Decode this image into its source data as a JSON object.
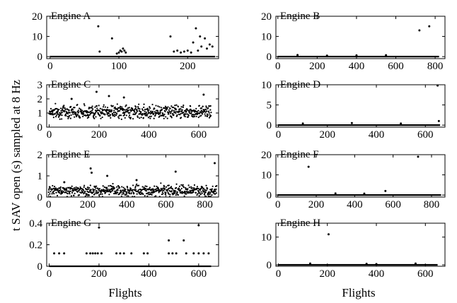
{
  "figure": {
    "ylabel": "t SAV open (s) sampled at 8 Hz",
    "xlabel_left": "Flights",
    "xlabel_right": "Flights"
  },
  "chart_data": [
    {
      "type": "scatter",
      "title": "Engine A",
      "xlim": [
        -5,
        245
      ],
      "ylim": [
        -1,
        20
      ],
      "xticks": [
        0,
        100,
        200
      ],
      "yticks": [
        0,
        10,
        20
      ],
      "baseline": {
        "value": 0,
        "x_from": 0,
        "x_to": 240
      },
      "points": [
        [
          70,
          15
        ],
        [
          72,
          2.5
        ],
        [
          90,
          9
        ],
        [
          97,
          1.5
        ],
        [
          100,
          2
        ],
        [
          102,
          3
        ],
        [
          104,
          2.5
        ],
        [
          106,
          4
        ],
        [
          108,
          3
        ],
        [
          110,
          2
        ],
        [
          175,
          10
        ],
        [
          180,
          2.5
        ],
        [
          185,
          3
        ],
        [
          190,
          2
        ],
        [
          195,
          2.5
        ],
        [
          200,
          3
        ],
        [
          205,
          2
        ],
        [
          208,
          7
        ],
        [
          212,
          14
        ],
        [
          215,
          3
        ],
        [
          218,
          10
        ],
        [
          220,
          5
        ],
        [
          225,
          9
        ],
        [
          228,
          4
        ],
        [
          232,
          6
        ],
        [
          236,
          5
        ]
      ]
    },
    {
      "type": "scatter",
      "title": "Engine B",
      "xlim": [
        -10,
        850
      ],
      "ylim": [
        -1,
        20
      ],
      "xticks": [
        0,
        200,
        400,
        600,
        800
      ],
      "yticks": [
        0,
        10,
        20
      ],
      "baseline": {
        "value": 0,
        "x_from": 0,
        "x_to": 820
      },
      "points": [
        [
          100,
          0.8
        ],
        [
          250,
          0.5
        ],
        [
          400,
          0.6
        ],
        [
          550,
          0.7
        ],
        [
          720,
          13
        ],
        [
          770,
          15
        ]
      ]
    },
    {
      "type": "scatter",
      "title": "Engine C",
      "xlim": [
        -10,
        680
      ],
      "ylim": [
        0,
        3
      ],
      "xticks": [
        0,
        200,
        400,
        600
      ],
      "yticks": [
        0,
        1,
        2,
        3
      ],
      "band": {
        "x_from": 0,
        "x_to": 650,
        "center": 1.1,
        "spread": 0.45,
        "count": 650
      },
      "points": [
        [
          190,
          2.5
        ],
        [
          240,
          2.2
        ],
        [
          620,
          2.3
        ],
        [
          300,
          2.1
        ],
        [
          90,
          2.0
        ]
      ]
    },
    {
      "type": "scatter",
      "title": "Engine D",
      "xlim": [
        -10,
        680
      ],
      "ylim": [
        -0.5,
        10
      ],
      "xticks": [
        0,
        200,
        400,
        600
      ],
      "yticks": [
        0,
        5,
        10
      ],
      "baseline": {
        "value": 0,
        "x_from": 0,
        "x_to": 660
      },
      "points": [
        [
          650,
          9.8
        ],
        [
          655,
          1.0
        ],
        [
          100,
          0.4
        ],
        [
          300,
          0.5
        ],
        [
          500,
          0.4
        ]
      ]
    },
    {
      "type": "scatter",
      "title": "Engine E",
      "xlim": [
        -10,
        870
      ],
      "ylim": [
        0,
        2
      ],
      "xticks": [
        0,
        200,
        400,
        600,
        800
      ],
      "yticks": [
        0,
        1,
        2
      ],
      "band": {
        "x_from": 0,
        "x_to": 860,
        "center": 0.3,
        "spread": 0.25,
        "count": 600
      },
      "points": [
        [
          215,
          1.35
        ],
        [
          220,
          1.15
        ],
        [
          300,
          1.0
        ],
        [
          650,
          1.2
        ],
        [
          850,
          1.6
        ],
        [
          80,
          0.7
        ],
        [
          450,
          0.8
        ]
      ]
    },
    {
      "type": "scatter",
      "title": "Engine F",
      "xlim": [
        -10,
        870
      ],
      "ylim": [
        -1,
        20
      ],
      "xticks": [
        0,
        200,
        400,
        600,
        800
      ],
      "yticks": [
        0,
        10,
        20
      ],
      "baseline": {
        "value": 0,
        "x_from": 0,
        "x_to": 850
      },
      "points": [
        [
          160,
          14
        ],
        [
          730,
          19
        ],
        [
          560,
          2
        ],
        [
          300,
          0.8
        ],
        [
          450,
          0.7
        ]
      ]
    },
    {
      "type": "scatter",
      "title": "Engine G",
      "xlim": [
        -10,
        680
      ],
      "ylim": [
        0,
        0.4
      ],
      "xticks": [
        0,
        200,
        400,
        600
      ],
      "yticks": [
        0,
        0.2,
        0.4
      ],
      "baseline": {
        "value": 0,
        "x_from": 0,
        "x_to": 650
      },
      "points": [
        [
          20,
          0.12
        ],
        [
          40,
          0.12
        ],
        [
          60,
          0.12
        ],
        [
          150,
          0.12
        ],
        [
          165,
          0.12
        ],
        [
          175,
          0.12
        ],
        [
          185,
          0.12
        ],
        [
          195,
          0.12
        ],
        [
          210,
          0.12
        ],
        [
          270,
          0.12
        ],
        [
          285,
          0.12
        ],
        [
          300,
          0.12
        ],
        [
          330,
          0.12
        ],
        [
          380,
          0.12
        ],
        [
          395,
          0.12
        ],
        [
          480,
          0.12
        ],
        [
          495,
          0.12
        ],
        [
          510,
          0.12
        ],
        [
          550,
          0.12
        ],
        [
          580,
          0.12
        ],
        [
          600,
          0.12
        ],
        [
          620,
          0.12
        ],
        [
          640,
          0.12
        ],
        [
          200,
          0.36
        ],
        [
          480,
          0.24
        ],
        [
          540,
          0.24
        ],
        [
          600,
          0.38
        ]
      ]
    },
    {
      "type": "scatter",
      "title": "Engine H",
      "xlim": [
        -10,
        680
      ],
      "ylim": [
        -0.5,
        15
      ],
      "xticks": [
        0,
        200,
        400,
        600
      ],
      "yticks": [
        0,
        10
      ],
      "baseline": {
        "value": 0,
        "x_from": 0,
        "x_to": 650
      },
      "points": [
        [
          205,
          11
        ],
        [
          130,
          0.5
        ],
        [
          360,
          0.4
        ],
        [
          560,
          0.5
        ],
        [
          400,
          0.3
        ]
      ]
    }
  ]
}
